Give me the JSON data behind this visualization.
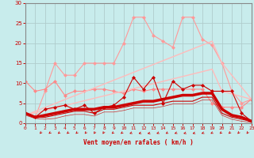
{
  "background_color": "#c8ecec",
  "grid_color": "#b0cccc",
  "xlabel": "Vent moyen/en rafales ( km/h )",
  "xlabel_color": "#cc0000",
  "tick_color": "#cc0000",
  "xlim": [
    0,
    23
  ],
  "ylim": [
    0,
    30
  ],
  "yticks": [
    0,
    5,
    10,
    15,
    20,
    25,
    30
  ],
  "xticks": [
    0,
    1,
    2,
    3,
    4,
    5,
    6,
    7,
    8,
    9,
    10,
    11,
    12,
    13,
    14,
    15,
    16,
    17,
    18,
    19,
    20,
    21,
    22,
    23
  ],
  "lines": [
    {
      "x": [
        0,
        1,
        2,
        3,
        4,
        5,
        6,
        7,
        8,
        9,
        10,
        11,
        12,
        13,
        14,
        15,
        16,
        17,
        18,
        19,
        20,
        21,
        22,
        23
      ],
      "y": [
        2.5,
        1.5,
        8.0,
        15.0,
        12.0,
        12.0,
        15.0,
        15.0,
        15.0,
        15.0,
        20.0,
        26.5,
        26.5,
        22.0,
        20.5,
        19.0,
        26.5,
        26.5,
        21.0,
        19.5,
        15.0,
        8.0,
        5.0,
        6.0
      ],
      "color": "#ff9999",
      "marker": "D",
      "markersize": 2,
      "linewidth": 0.8,
      "alpha": 1.0
    },
    {
      "x": [
        0,
        1,
        2,
        3,
        4,
        5,
        6,
        7,
        8,
        9,
        10,
        11,
        12,
        13,
        14,
        15,
        16,
        17,
        18,
        19,
        20,
        21,
        22,
        23
      ],
      "y": [
        10.5,
        8.0,
        8.5,
        10.5,
        7.0,
        8.0,
        8.0,
        8.5,
        8.5,
        8.0,
        7.5,
        8.5,
        8.0,
        8.5,
        8.5,
        8.5,
        8.5,
        8.5,
        8.5,
        5.0,
        4.0,
        4.0,
        4.0,
        6.0
      ],
      "color": "#ff8888",
      "marker": "D",
      "markersize": 2,
      "linewidth": 0.8,
      "alpha": 1.0
    },
    {
      "x": [
        0,
        19,
        20,
        23
      ],
      "y": [
        2.0,
        20.5,
        15.0,
        6.0
      ],
      "color": "#ffbbbb",
      "marker": null,
      "markersize": 0,
      "linewidth": 1.0,
      "alpha": 1.0
    },
    {
      "x": [
        0,
        19,
        20,
        23
      ],
      "y": [
        2.0,
        13.5,
        8.0,
        6.0
      ],
      "color": "#ffbbbb",
      "marker": null,
      "markersize": 0,
      "linewidth": 1.0,
      "alpha": 1.0
    },
    {
      "x": [
        0,
        1,
        2,
        3,
        4,
        5,
        6,
        7,
        8,
        9,
        10,
        11,
        12,
        13,
        14,
        15,
        16,
        17,
        18,
        19,
        20,
        21,
        22,
        23
      ],
      "y": [
        2.5,
        1.5,
        3.5,
        4.0,
        4.5,
        3.5,
        4.5,
        2.5,
        4.0,
        4.5,
        6.5,
        11.5,
        8.5,
        11.5,
        5.0,
        10.5,
        8.5,
        9.5,
        9.5,
        8.0,
        8.0,
        8.0,
        2.5,
        0.5
      ],
      "color": "#cc0000",
      "marker": "D",
      "markersize": 2,
      "linewidth": 0.8,
      "alpha": 1.0
    },
    {
      "x": [
        0,
        1,
        2,
        3,
        4,
        5,
        6,
        7,
        8,
        9,
        10,
        11,
        12,
        13,
        14,
        15,
        16,
        17,
        18,
        19,
        20,
        21,
        22,
        23
      ],
      "y": [
        2.5,
        1.5,
        2.0,
        2.5,
        3.0,
        3.5,
        3.5,
        3.5,
        4.0,
        4.0,
        4.5,
        5.0,
        5.5,
        5.5,
        6.0,
        6.5,
        7.0,
        7.0,
        7.5,
        7.5,
        3.5,
        2.0,
        1.5,
        0.5
      ],
      "color": "#cc0000",
      "marker": null,
      "markersize": 0,
      "linewidth": 2.5,
      "alpha": 1.0
    },
    {
      "x": [
        0,
        1,
        2,
        3,
        4,
        5,
        6,
        7,
        8,
        9,
        10,
        11,
        12,
        13,
        14,
        15,
        16,
        17,
        18,
        19,
        20,
        21,
        22,
        23
      ],
      "y": [
        2.5,
        1.5,
        1.5,
        2.0,
        2.5,
        3.0,
        3.0,
        2.5,
        3.5,
        3.5,
        4.0,
        4.5,
        4.5,
        4.5,
        5.0,
        5.5,
        5.5,
        5.5,
        6.5,
        6.5,
        2.5,
        1.5,
        1.0,
        0.5
      ],
      "color": "#cc0000",
      "marker": null,
      "markersize": 0,
      "linewidth": 0.8,
      "alpha": 1.0
    },
    {
      "x": [
        0,
        1,
        2,
        3,
        4,
        5,
        6,
        7,
        8,
        9,
        10,
        11,
        12,
        13,
        14,
        15,
        16,
        17,
        18,
        19,
        20,
        21,
        22,
        23
      ],
      "y": [
        2.0,
        1.2,
        1.0,
        1.2,
        1.8,
        2.2,
        2.2,
        1.8,
        2.8,
        2.8,
        3.2,
        3.8,
        3.8,
        3.8,
        4.2,
        4.8,
        4.8,
        4.8,
        5.8,
        5.8,
        2.0,
        1.0,
        0.5,
        0.2
      ],
      "color": "#cc0000",
      "marker": null,
      "markersize": 0,
      "linewidth": 0.5,
      "alpha": 0.8
    }
  ],
  "arrow_angles_deg": [
    225,
    215,
    210,
    215,
    220,
    225,
    230,
    235,
    215,
    210,
    200,
    195,
    190,
    200,
    205,
    200,
    195,
    195,
    200,
    205,
    215,
    220,
    225,
    230
  ]
}
